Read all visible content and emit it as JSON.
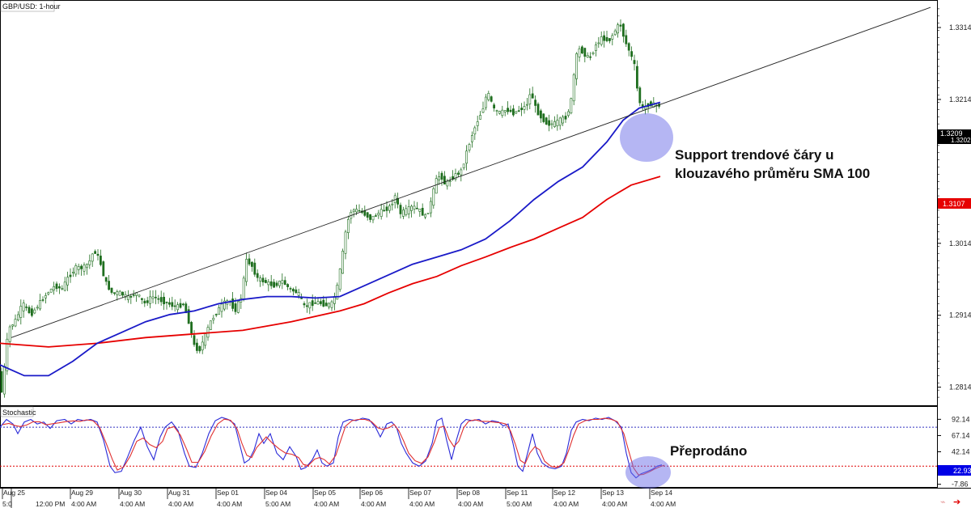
{
  "chart_data": {
    "type": "candlestick",
    "title": "GBP/USD: 1-hour",
    "price_axis": {
      "range": [
        1.279,
        1.335
      ],
      "ticks": [
        "1.3314",
        "1.3214",
        "1.3014",
        "1.2914",
        "1.2814"
      ]
    },
    "price_labels": {
      "current": "1.3209",
      "current_sub": "1.3202",
      "sma200": "1.3107"
    },
    "x_labels_top": [
      "Aug 25",
      "Aug 29",
      "Aug 30",
      "Aug 31",
      "Sep 01",
      "Sep 04",
      "Sep 05",
      "Sep 06",
      "Sep 07",
      "Sep 08",
      "Sep 11",
      "Sep 12",
      "Sep 13",
      "Sep 14"
    ],
    "x_labels_bottom": [
      "5:0",
      "12:00 PM",
      "4:00 AM",
      "4:00 AM",
      "4:00 AM",
      "4:00 AM",
      "5:00 AM",
      "4:00 AM",
      "4:00 AM",
      "4:00 AM",
      "4:00 AM",
      "5:00 AM",
      "4:00 AM",
      "4:00 AM",
      "4:00 AM"
    ],
    "ohlc_path": [
      [
        0,
        1.284
      ],
      [
        3,
        1.28
      ],
      [
        8,
        1.285
      ],
      [
        12,
        1.2895
      ],
      [
        20,
        1.2905
      ],
      [
        30,
        1.293
      ],
      [
        40,
        1.2915
      ],
      [
        50,
        1.293
      ],
      [
        60,
        1.2945
      ],
      [
        70,
        1.2955
      ],
      [
        78,
        1.295
      ],
      [
        85,
        1.2965
      ],
      [
        95,
        1.298
      ],
      [
        105,
        1.298
      ],
      [
        112,
        1.2988
      ],
      [
        118,
        1.3005
      ],
      [
        125,
        1.299
      ],
      [
        132,
        1.296
      ],
      [
        140,
        1.2945
      ],
      [
        150,
        1.2945
      ],
      [
        160,
        1.2938
      ],
      [
        170,
        1.2945
      ],
      [
        180,
        1.293
      ],
      [
        190,
        1.294
      ],
      [
        200,
        1.2935
      ],
      [
        210,
        1.293
      ],
      [
        220,
        1.2925
      ],
      [
        228,
        1.293
      ],
      [
        235,
        1.2905
      ],
      [
        242,
        1.287
      ],
      [
        248,
        1.2865
      ],
      [
        255,
        1.2885
      ],
      [
        262,
        1.2905
      ],
      [
        270,
        1.292
      ],
      [
        278,
        1.293
      ],
      [
        285,
        1.2935
      ],
      [
        292,
        1.292
      ],
      [
        300,
        1.294
      ],
      [
        306,
        1.299
      ],
      [
        312,
        1.2985
      ],
      [
        320,
        1.2965
      ],
      [
        330,
        1.296
      ],
      [
        340,
        1.2955
      ],
      [
        350,
        1.2962
      ],
      [
        360,
        1.295
      ],
      [
        370,
        1.2945
      ],
      [
        378,
        1.2925
      ],
      [
        385,
        1.293
      ],
      [
        395,
        1.2932
      ],
      [
        405,
        1.2928
      ],
      [
        412,
        1.293
      ],
      [
        418,
        1.295
      ],
      [
        424,
        1.299
      ],
      [
        430,
        1.304
      ],
      [
        436,
        1.306
      ],
      [
        444,
        1.306
      ],
      [
        452,
        1.3055
      ],
      [
        460,
        1.3048
      ],
      [
        468,
        1.3055
      ],
      [
        476,
        1.306
      ],
      [
        484,
        1.3065
      ],
      [
        490,
        1.308
      ],
      [
        496,
        1.3055
      ],
      [
        504,
        1.306
      ],
      [
        512,
        1.3065
      ],
      [
        520,
        1.306
      ],
      [
        528,
        1.305
      ],
      [
        534,
        1.307
      ],
      [
        540,
        1.31
      ],
      [
        546,
        1.311
      ],
      [
        552,
        1.3095
      ],
      [
        560,
        1.3105
      ],
      [
        566,
        1.311
      ],
      [
        572,
        1.3115
      ],
      [
        578,
        1.314
      ],
      [
        585,
        1.3165
      ],
      [
        592,
        1.3185
      ],
      [
        598,
        1.32
      ],
      [
        604,
        1.3225
      ],
      [
        612,
        1.32
      ],
      [
        620,
        1.3195
      ],
      [
        628,
        1.32
      ],
      [
        636,
        1.3195
      ],
      [
        644,
        1.32
      ],
      [
        652,
        1.3205
      ],
      [
        658,
        1.3225
      ],
      [
        664,
        1.32
      ],
      [
        670,
        1.319
      ],
      [
        678,
        1.318
      ],
      [
        686,
        1.318
      ],
      [
        694,
        1.3185
      ],
      [
        702,
        1.319
      ],
      [
        708,
        1.3215
      ],
      [
        712,
        1.326
      ],
      [
        716,
        1.3285
      ],
      [
        722,
        1.328
      ],
      [
        730,
        1.327
      ],
      [
        738,
        1.329
      ],
      [
        746,
        1.33
      ],
      [
        754,
        1.3295
      ],
      [
        762,
        1.331
      ],
      [
        768,
        1.332
      ],
      [
        774,
        1.3295
      ],
      [
        780,
        1.328
      ],
      [
        786,
        1.326
      ],
      [
        790,
        1.322
      ],
      [
        795,
        1.32
      ],
      [
        800,
        1.3205
      ],
      [
        806,
        1.3208
      ],
      [
        812,
        1.3205
      ],
      [
        816,
        1.3206
      ]
    ],
    "trendline": [
      [
        14,
        1.2883
      ],
      [
        1150,
        1.3342
      ]
    ],
    "sma100": [
      [
        0,
        1.2845
      ],
      [
        30,
        1.283
      ],
      [
        60,
        1.283
      ],
      [
        90,
        1.285
      ],
      [
        120,
        1.2875
      ],
      [
        150,
        1.289
      ],
      [
        180,
        1.2905
      ],
      [
        210,
        1.2915
      ],
      [
        240,
        1.292
      ],
      [
        270,
        1.293
      ],
      [
        300,
        1.2936
      ],
      [
        330,
        1.294
      ],
      [
        360,
        1.294
      ],
      [
        390,
        1.2938
      ],
      [
        420,
        1.294
      ],
      [
        450,
        1.2955
      ],
      [
        480,
        1.297
      ],
      [
        510,
        1.2985
      ],
      [
        540,
        1.2995
      ],
      [
        570,
        1.3005
      ],
      [
        600,
        1.302
      ],
      [
        630,
        1.3045
      ],
      [
        660,
        1.3075
      ],
      [
        690,
        1.31
      ],
      [
        720,
        1.312
      ],
      [
        750,
        1.3155
      ],
      [
        770,
        1.3185
      ],
      [
        790,
        1.3202
      ],
      [
        816,
        1.321
      ]
    ],
    "sma200": [
      [
        0,
        1.2875
      ],
      [
        60,
        1.287
      ],
      [
        120,
        1.2875
      ],
      [
        180,
        1.2883
      ],
      [
        240,
        1.2888
      ],
      [
        300,
        1.2893
      ],
      [
        360,
        1.2905
      ],
      [
        420,
        1.292
      ],
      [
        450,
        1.293
      ],
      [
        480,
        1.2945
      ],
      [
        510,
        1.2958
      ],
      [
        540,
        1.2968
      ],
      [
        570,
        1.2983
      ],
      [
        600,
        1.2995
      ],
      [
        630,
        1.3008
      ],
      [
        660,
        1.302
      ],
      [
        690,
        1.3035
      ],
      [
        720,
        1.305
      ],
      [
        750,
        1.3075
      ],
      [
        780,
        1.3095
      ],
      [
        816,
        1.3107
      ]
    ],
    "annotations": {
      "main": [
        "Support trendové čáry u",
        "klouzavého průměru SMA 100"
      ],
      "stoch": "Přeprodáno"
    },
    "stochastic": {
      "title": "Stochastic",
      "range": [
        -12,
        110
      ],
      "ticks": [
        "92.14",
        "67.14",
        "42.14",
        "17.14",
        "-7.86"
      ],
      "current": "22.93",
      "upper_level": 80,
      "lower_level": 20,
      "k": [
        [
          0,
          80
        ],
        [
          8,
          92
        ],
        [
          16,
          85
        ],
        [
          22,
          70
        ],
        [
          30,
          88
        ],
        [
          38,
          92
        ],
        [
          46,
          85
        ],
        [
          54,
          88
        ],
        [
          62,
          78
        ],
        [
          70,
          90
        ],
        [
          80,
          92
        ],
        [
          88,
          85
        ],
        [
          96,
          92
        ],
        [
          104,
          90
        ],
        [
          112,
          92
        ],
        [
          120,
          88
        ],
        [
          128,
          60
        ],
        [
          136,
          20
        ],
        [
          142,
          10
        ],
        [
          150,
          12
        ],
        [
          158,
          35
        ],
        [
          166,
          60
        ],
        [
          174,
          80
        ],
        [
          182,
          50
        ],
        [
          190,
          30
        ],
        [
          198,
          65
        ],
        [
          204,
          80
        ],
        [
          212,
          88
        ],
        [
          220,
          75
        ],
        [
          228,
          40
        ],
        [
          234,
          20
        ],
        [
          242,
          18
        ],
        [
          250,
          40
        ],
        [
          258,
          70
        ],
        [
          266,
          90
        ],
        [
          274,
          95
        ],
        [
          282,
          92
        ],
        [
          290,
          85
        ],
        [
          296,
          55
        ],
        [
          302,
          25
        ],
        [
          308,
          30
        ],
        [
          314,
          45
        ],
        [
          320,
          70
        ],
        [
          326,
          55
        ],
        [
          334,
          70
        ],
        [
          342,
          40
        ],
        [
          350,
          30
        ],
        [
          358,
          50
        ],
        [
          366,
          35
        ],
        [
          372,
          15
        ],
        [
          378,
          18
        ],
        [
          386,
          30
        ],
        [
          392,
          45
        ],
        [
          398,
          25
        ],
        [
          404,
          20
        ],
        [
          412,
          25
        ],
        [
          418,
          65
        ],
        [
          424,
          88
        ],
        [
          432,
          92
        ],
        [
          440,
          90
        ],
        [
          448,
          94
        ],
        [
          456,
          92
        ],
        [
          464,
          80
        ],
        [
          470,
          65
        ],
        [
          478,
          85
        ],
        [
          484,
          88
        ],
        [
          490,
          80
        ],
        [
          496,
          55
        ],
        [
          502,
          40
        ],
        [
          510,
          25
        ],
        [
          518,
          20
        ],
        [
          526,
          28
        ],
        [
          534,
          55
        ],
        [
          540,
          90
        ],
        [
          546,
          94
        ],
        [
          552,
          60
        ],
        [
          558,
          30
        ],
        [
          564,
          60
        ],
        [
          570,
          85
        ],
        [
          576,
          92
        ],
        [
          584,
          90
        ],
        [
          592,
          92
        ],
        [
          600,
          85
        ],
        [
          608,
          90
        ],
        [
          616,
          88
        ],
        [
          622,
          82
        ],
        [
          628,
          85
        ],
        [
          634,
          55
        ],
        [
          640,
          20
        ],
        [
          646,
          12
        ],
        [
          652,
          40
        ],
        [
          658,
          70
        ],
        [
          664,
          40
        ],
        [
          670,
          25
        ],
        [
          678,
          18
        ],
        [
          686,
          16
        ],
        [
          694,
          20
        ],
        [
          700,
          40
        ],
        [
          706,
          75
        ],
        [
          712,
          88
        ],
        [
          720,
          92
        ],
        [
          728,
          90
        ],
        [
          736,
          94
        ],
        [
          744,
          92
        ],
        [
          752,
          95
        ],
        [
          760,
          90
        ],
        [
          768,
          80
        ],
        [
          774,
          40
        ],
        [
          780,
          10
        ],
        [
          786,
          2
        ],
        [
          792,
          8
        ],
        [
          800,
          12
        ],
        [
          806,
          15
        ],
        [
          812,
          20
        ],
        [
          818,
          22
        ]
      ]
    }
  }
}
